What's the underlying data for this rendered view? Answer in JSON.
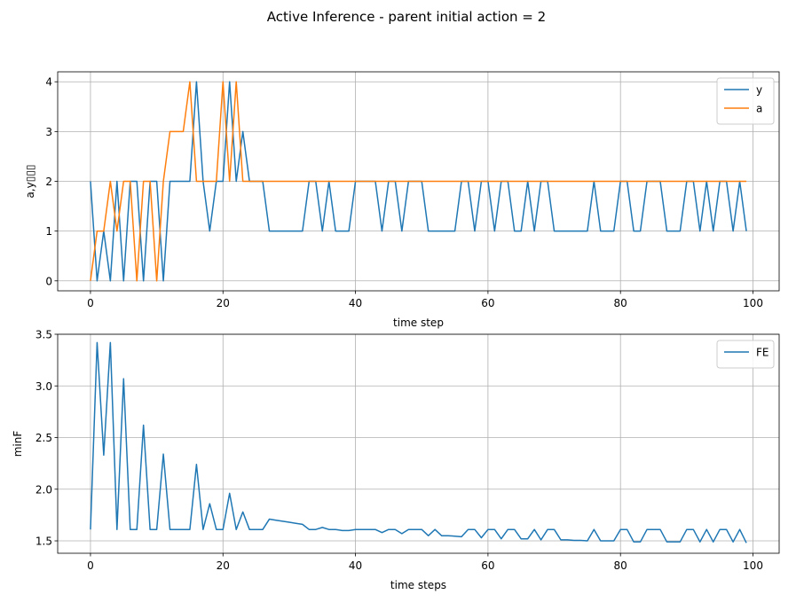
{
  "figure_title": "Active Inference - parent initial action = 2",
  "colors": {
    "y": "#1f77b4",
    "a": "#ff7f0e",
    "FE": "#1f77b4"
  },
  "chart_data": [
    {
      "type": "line",
      "xlabel": "time step",
      "ylabel": "a,y▯▯▯",
      "xlim": [
        -4.95,
        103.95
      ],
      "ylim": [
        -0.2,
        4.2
      ],
      "xticks": [
        0,
        20,
        40,
        60,
        80,
        100
      ],
      "yticks": [
        0,
        1,
        2,
        3,
        4
      ],
      "ytick_labels": [
        "0",
        "1",
        "2",
        "3",
        "4"
      ],
      "grid": true,
      "legend": "upper right",
      "series": [
        {
          "name": "y",
          "color": "#1f77b4",
          "values": [
            2,
            0,
            1,
            0,
            2,
            0,
            2,
            2,
            0,
            2,
            2,
            0,
            2,
            2,
            2,
            2,
            4,
            2,
            1,
            2,
            2,
            4,
            2,
            3,
            2,
            2,
            2,
            1,
            1,
            1,
            1,
            1,
            1,
            2,
            2,
            1,
            2,
            1,
            1,
            1,
            2,
            2,
            2,
            2,
            1,
            2,
            2,
            1,
            2,
            2,
            2,
            1,
            1,
            1,
            1,
            1,
            2,
            2,
            1,
            2,
            2,
            1,
            2,
            2,
            1,
            1,
            2,
            1,
            2,
            2,
            1,
            1,
            1,
            1,
            1,
            1,
            2,
            1,
            1,
            1,
            2,
            2,
            1,
            1,
            2,
            2,
            2,
            1,
            1,
            1,
            2,
            2,
            1,
            2,
            1,
            2,
            2,
            1,
            2,
            1
          ]
        },
        {
          "name": "a",
          "color": "#ff7f0e",
          "values": [
            0,
            1,
            1,
            2,
            1,
            2,
            2,
            0,
            2,
            2,
            0,
            2,
            3,
            3,
            3,
            4,
            2,
            2,
            2,
            2,
            4,
            2,
            4,
            2,
            2,
            2,
            2,
            2,
            2,
            2,
            2,
            2,
            2,
            2,
            2,
            2,
            2,
            2,
            2,
            2,
            2,
            2,
            2,
            2,
            2,
            2,
            2,
            2,
            2,
            2,
            2,
            2,
            2,
            2,
            2,
            2,
            2,
            2,
            2,
            2,
            2,
            2,
            2,
            2,
            2,
            2,
            2,
            2,
            2,
            2,
            2,
            2,
            2,
            2,
            2,
            2,
            2,
            2,
            2,
            2,
            2,
            2,
            2,
            2,
            2,
            2,
            2,
            2,
            2,
            2,
            2,
            2,
            2,
            2,
            2,
            2,
            2,
            2,
            2,
            2
          ]
        }
      ]
    },
    {
      "type": "line",
      "xlabel": "time steps",
      "ylabel": "minF",
      "xlim": [
        -4.95,
        103.95
      ],
      "ylim": [
        1.38,
        3.5
      ],
      "xticks": [
        0,
        20,
        40,
        60,
        80,
        100
      ],
      "yticks": [
        1.5,
        2.0,
        2.5,
        3.0,
        3.5
      ],
      "ytick_labels": [
        "1.5",
        "2.0",
        "2.5",
        "3.0",
        "3.5"
      ],
      "grid": true,
      "legend": "upper right",
      "series": [
        {
          "name": "FE",
          "color": "#1f77b4",
          "values": [
            1.61,
            3.42,
            2.33,
            3.42,
            1.61,
            3.07,
            1.61,
            1.61,
            2.62,
            1.61,
            1.61,
            2.34,
            1.61,
            1.61,
            1.61,
            1.61,
            2.24,
            1.61,
            1.86,
            1.61,
            1.61,
            1.96,
            1.61,
            1.78,
            1.61,
            1.61,
            1.61,
            1.71,
            1.7,
            1.69,
            1.68,
            1.67,
            1.66,
            1.61,
            1.61,
            1.63,
            1.61,
            1.61,
            1.6,
            1.6,
            1.61,
            1.61,
            1.61,
            1.61,
            1.58,
            1.61,
            1.61,
            1.57,
            1.61,
            1.61,
            1.61,
            1.55,
            1.61,
            1.55,
            1.55,
            1.545,
            1.54,
            1.61,
            1.61,
            1.53,
            1.61,
            1.61,
            1.52,
            1.61,
            1.61,
            1.52,
            1.52,
            1.61,
            1.51,
            1.61,
            1.61,
            1.51,
            1.51,
            1.505,
            1.505,
            1.5,
            1.61,
            1.5,
            1.5,
            1.5,
            1.61,
            1.61,
            1.49,
            1.49,
            1.61,
            1.61,
            1.61,
            1.49,
            1.49,
            1.49,
            1.61,
            1.61,
            1.49,
            1.61,
            1.49,
            1.61,
            1.61,
            1.49,
            1.61,
            1.48
          ]
        }
      ]
    }
  ]
}
